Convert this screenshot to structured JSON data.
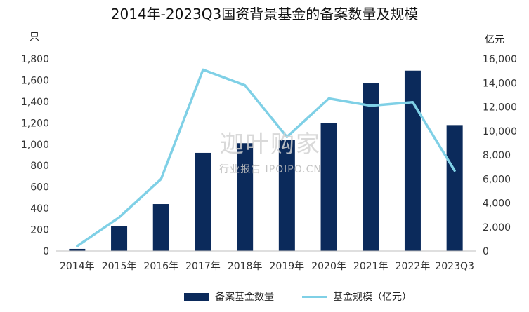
{
  "chart_data": {
    "type": "bar",
    "title": "2014年-2023Q3国资背景基金的备案数量及规模",
    "categories": [
      "2014年",
      "2015年",
      "2016年",
      "2017年",
      "2018年",
      "2019年",
      "2020年",
      "2021年",
      "2022年",
      "2023Q3"
    ],
    "y_left_unit": "只",
    "y_right_unit": "亿元",
    "ylim_left": [
      0,
      1800
    ],
    "ylim_right": [
      0,
      16000
    ],
    "yticks_left": [
      "0",
      "200",
      "400",
      "600",
      "800",
      "1,000",
      "1,200",
      "1,400",
      "1,600",
      "1,800"
    ],
    "yticks_right": [
      "0",
      "2,000",
      "4,000",
      "6,000",
      "8,000",
      "10,000",
      "12,000",
      "14,000",
      "16,000"
    ],
    "series": [
      {
        "name": "备案基金数量",
        "type": "bar",
        "axis": "left",
        "color": "#0b2a5b",
        "values": [
          20,
          230,
          440,
          920,
          1010,
          1040,
          1200,
          1570,
          1690,
          1180
        ]
      },
      {
        "name": "基金规模（亿元）",
        "type": "line",
        "axis": "right",
        "color": "#7fd0e6",
        "values": [
          400,
          2800,
          6000,
          15100,
          13800,
          9500,
          12700,
          12100,
          12400,
          6700
        ]
      }
    ],
    "legend_position": "bottom",
    "grid": false
  },
  "watermark": {
    "main": "迦叶购家",
    "sub": "行业报告 IPOIPO.CN"
  }
}
